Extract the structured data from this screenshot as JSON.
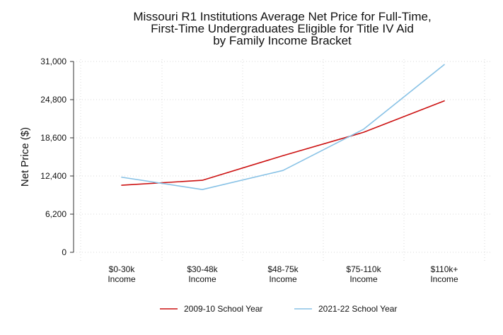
{
  "chart_data": {
    "type": "line",
    "title_lines": [
      "Missouri R1 Institutions Average Net Price for Full-Time,",
      "First-Time Undergraduates Eligible for Title IV Aid",
      "by Family Income Bracket"
    ],
    "xlabel": "",
    "ylabel": "Net Price ($)",
    "categories": [
      [
        "$0-30k",
        "Income"
      ],
      [
        "$30-48k",
        "Income"
      ],
      [
        "$48-75k",
        "Income"
      ],
      [
        "$75-110k",
        "Income"
      ],
      [
        "$110k+",
        "Income"
      ]
    ],
    "yticks": [
      "0",
      "6,200",
      "12,400",
      "18,600",
      "24,800",
      "31,000"
    ],
    "ylim": [
      0,
      31000
    ],
    "grid": true,
    "legend_position": "bottom",
    "series": [
      {
        "name": "2009-10 School Year",
        "color": "#cc1111",
        "values": [
          10900,
          11700,
          15700,
          19500,
          24600
        ]
      },
      {
        "name": "2021-22 School Year",
        "color": "#88c2e6",
        "values": [
          12200,
          10200,
          13300,
          20000,
          30500
        ]
      }
    ]
  }
}
